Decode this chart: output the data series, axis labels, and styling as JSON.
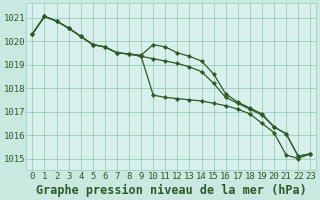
{
  "background_color": "#c8e8e0",
  "plot_bg_color": "#d8f0ec",
  "grid_color": "#99ccbb",
  "line_color": "#2d5a27",
  "title": "Graphe pression niveau de la mer (hPa)",
  "xlim": [
    -0.5,
    23.5
  ],
  "ylim": [
    1014.5,
    1021.6
  ],
  "yticks": [
    1015,
    1016,
    1017,
    1018,
    1019,
    1020,
    1021
  ],
  "xticks": [
    0,
    1,
    2,
    3,
    4,
    5,
    6,
    7,
    8,
    9,
    10,
    11,
    12,
    13,
    14,
    15,
    16,
    17,
    18,
    19,
    20,
    21,
    22,
    23
  ],
  "series": [
    [
      1020.3,
      1021.05,
      1020.85,
      1020.55,
      1020.2,
      1019.85,
      1019.75,
      1019.5,
      1019.45,
      1019.4,
      1019.85,
      1019.75,
      1019.5,
      1019.35,
      1019.15,
      1018.6,
      1017.75,
      1017.4,
      1017.15,
      1016.9,
      1016.35,
      1016.05,
      1015.1,
      1015.2
    ],
    [
      1020.3,
      1021.05,
      1020.85,
      1020.55,
      1020.2,
      1019.85,
      1019.75,
      1019.5,
      1019.45,
      1019.35,
      1017.7,
      1017.6,
      1017.55,
      1017.5,
      1017.45,
      1017.35,
      1017.25,
      1017.1,
      1016.9,
      1016.5,
      1016.1,
      1015.15,
      1015.0,
      1015.2
    ],
    [
      1020.3,
      1021.05,
      1020.85,
      1020.55,
      1020.2,
      1019.85,
      1019.75,
      1019.5,
      1019.45,
      1019.35,
      1019.25,
      1019.15,
      1019.05,
      1018.9,
      1018.7,
      1018.2,
      1017.6,
      1017.35,
      1017.1,
      1016.85,
      1016.35,
      1016.05,
      1015.1,
      1015.2
    ]
  ],
  "figsize": [
    3.2,
    2.0
  ],
  "dpi": 100,
  "tick_fontsize": 6.5,
  "title_fontsize": 8.5
}
